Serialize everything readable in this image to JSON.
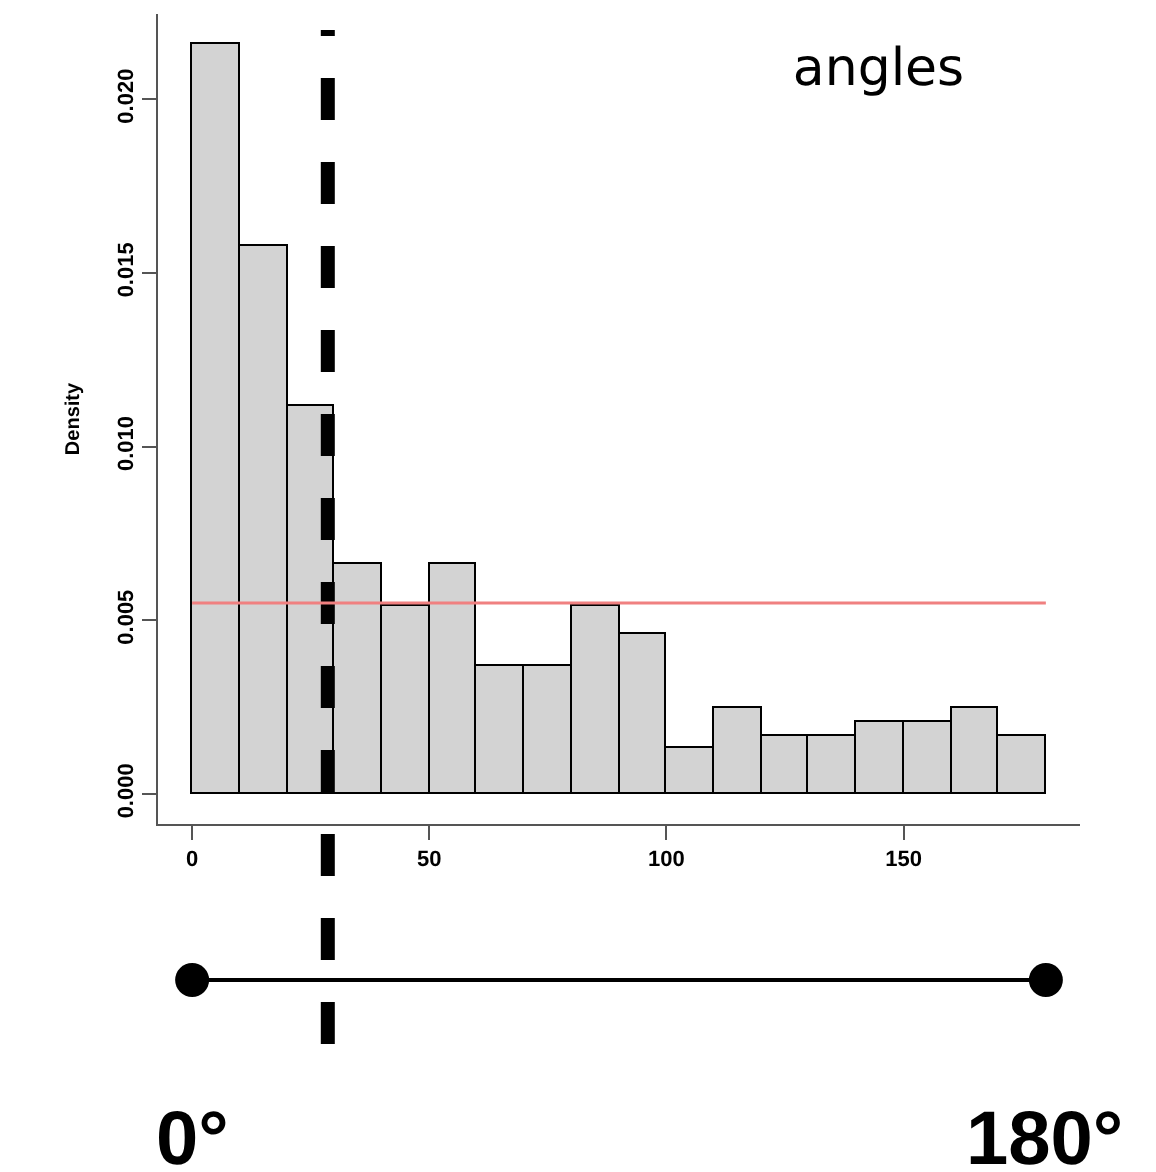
{
  "chart_data": {
    "type": "histogram",
    "title": "angles",
    "ylabel": "Density",
    "bins": [
      0,
      10,
      20,
      30,
      40,
      50,
      60,
      70,
      80,
      90,
      100,
      110,
      120,
      130,
      140,
      150,
      160,
      170,
      180
    ],
    "values": [
      0.0216,
      0.0158,
      0.0112,
      0.0066,
      0.0054,
      0.0066,
      0.0037,
      0.0037,
      0.0054,
      0.0046,
      0.0013,
      0.0025,
      0.0017,
      0.0017,
      0.0021,
      0.0021,
      0.0025,
      0.0017
    ],
    "color": "#d3d3d3",
    "xlim": [
      -7.2,
      187.2
    ],
    "xticks": [
      0,
      50,
      100,
      150
    ],
    "ylim": [
      -0.00086,
      0.02246
    ],
    "yticks": [
      {
        "value": 0,
        "label": "0.000"
      },
      0.005,
      {
        "value": 0.01,
        "label": "0.010"
      },
      0.015,
      {
        "value": 0.02,
        "label": "0.020"
      }
    ],
    "ref_lines": [
      {
        "axis": "x",
        "value": 28.6,
        "color": "#000000",
        "line_style": "dashed"
      },
      {
        "axis": "y",
        "value": 0.0055,
        "color": "#f08080",
        "line_style": "solid"
      }
    ],
    "annotations": [
      "0°",
      "180°"
    ]
  }
}
